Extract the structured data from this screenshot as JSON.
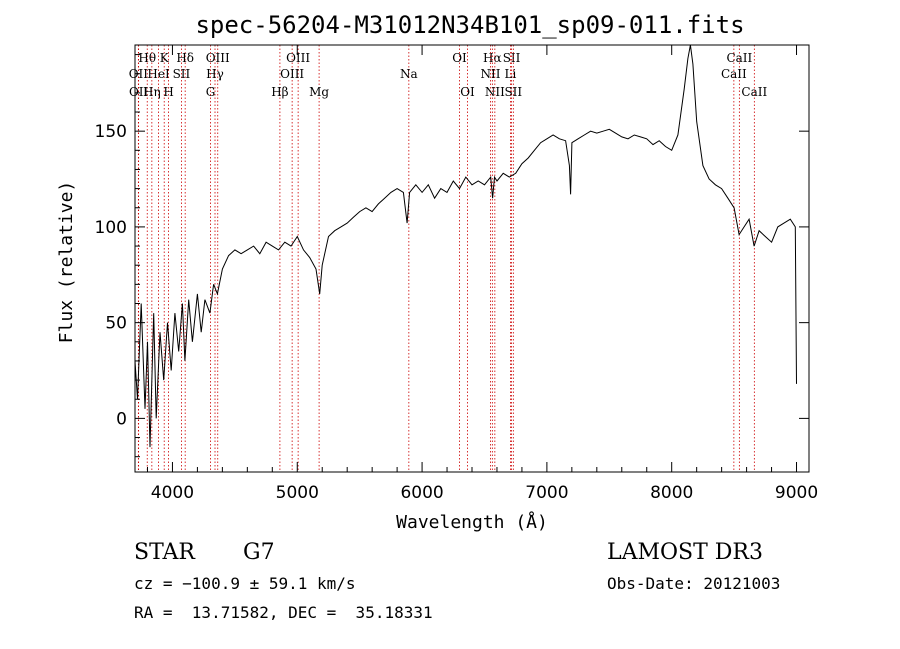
{
  "chart_data": {
    "type": "line",
    "title": "spec-56204-M31012N34B101_sp09-011.fits",
    "xlabel": "Wavelength (Å)",
    "ylabel": "Flux (relative)",
    "xlim": [
      3700,
      9100
    ],
    "ylim": [
      -28,
      195
    ],
    "xticks": [
      4000,
      5000,
      6000,
      7000,
      8000,
      9000
    ],
    "yticks": [
      0,
      50,
      100,
      150
    ],
    "series": [
      {
        "name": "spectrum",
        "points": [
          [
            3700,
            30
          ],
          [
            3720,
            10
          ],
          [
            3750,
            60
          ],
          [
            3780,
            5
          ],
          [
            3800,
            40
          ],
          [
            3820,
            -15
          ],
          [
            3850,
            55
          ],
          [
            3870,
            0
          ],
          [
            3900,
            45
          ],
          [
            3930,
            20
          ],
          [
            3960,
            50
          ],
          [
            3990,
            25
          ],
          [
            4020,
            55
          ],
          [
            4050,
            35
          ],
          [
            4080,
            60
          ],
          [
            4100,
            30
          ],
          [
            4130,
            62
          ],
          [
            4160,
            40
          ],
          [
            4200,
            65
          ],
          [
            4230,
            45
          ],
          [
            4260,
            62
          ],
          [
            4300,
            55
          ],
          [
            4330,
            70
          ],
          [
            4360,
            65
          ],
          [
            4400,
            78
          ],
          [
            4450,
            85
          ],
          [
            4500,
            88
          ],
          [
            4550,
            86
          ],
          [
            4600,
            88
          ],
          [
            4650,
            90
          ],
          [
            4700,
            86
          ],
          [
            4750,
            92
          ],
          [
            4800,
            90
          ],
          [
            4850,
            88
          ],
          [
            4900,
            92
          ],
          [
            4950,
            90
          ],
          [
            5000,
            95
          ],
          [
            5050,
            88
          ],
          [
            5100,
            84
          ],
          [
            5150,
            78
          ],
          [
            5180,
            65
          ],
          [
            5200,
            80
          ],
          [
            5250,
            95
          ],
          [
            5300,
            98
          ],
          [
            5350,
            100
          ],
          [
            5400,
            102
          ],
          [
            5450,
            105
          ],
          [
            5500,
            108
          ],
          [
            5550,
            110
          ],
          [
            5600,
            108
          ],
          [
            5650,
            112
          ],
          [
            5700,
            115
          ],
          [
            5750,
            118
          ],
          [
            5800,
            120
          ],
          [
            5850,
            118
          ],
          [
            5880,
            102
          ],
          [
            5900,
            118
          ],
          [
            5950,
            122
          ],
          [
            6000,
            118
          ],
          [
            6050,
            122
          ],
          [
            6100,
            115
          ],
          [
            6150,
            120
          ],
          [
            6200,
            118
          ],
          [
            6250,
            124
          ],
          [
            6300,
            120
          ],
          [
            6350,
            126
          ],
          [
            6400,
            122
          ],
          [
            6450,
            124
          ],
          [
            6500,
            122
          ],
          [
            6550,
            126
          ],
          [
            6565,
            115
          ],
          [
            6580,
            126
          ],
          [
            6600,
            124
          ],
          [
            6650,
            128
          ],
          [
            6700,
            126
          ],
          [
            6750,
            128
          ],
          [
            6800,
            133
          ],
          [
            6850,
            136
          ],
          [
            6900,
            140
          ],
          [
            6950,
            144
          ],
          [
            7000,
            146
          ],
          [
            7050,
            148
          ],
          [
            7100,
            146
          ],
          [
            7150,
            145
          ],
          [
            7180,
            132
          ],
          [
            7190,
            117
          ],
          [
            7200,
            144
          ],
          [
            7250,
            146
          ],
          [
            7300,
            148
          ],
          [
            7350,
            150
          ],
          [
            7400,
            149
          ],
          [
            7450,
            150
          ],
          [
            7500,
            151
          ],
          [
            7550,
            149
          ],
          [
            7600,
            147
          ],
          [
            7650,
            146
          ],
          [
            7700,
            148
          ],
          [
            7750,
            147
          ],
          [
            7800,
            146
          ],
          [
            7850,
            143
          ],
          [
            7900,
            145
          ],
          [
            7950,
            142
          ],
          [
            8000,
            140
          ],
          [
            8050,
            148
          ],
          [
            8100,
            172
          ],
          [
            8130,
            188
          ],
          [
            8150,
            196
          ],
          [
            8170,
            185
          ],
          [
            8200,
            155
          ],
          [
            8250,
            132
          ],
          [
            8300,
            125
          ],
          [
            8350,
            122
          ],
          [
            8400,
            120
          ],
          [
            8450,
            115
          ],
          [
            8500,
            110
          ],
          [
            8540,
            96
          ],
          [
            8580,
            100
          ],
          [
            8620,
            104
          ],
          [
            8660,
            90
          ],
          [
            8700,
            98
          ],
          [
            8750,
            95
          ],
          [
            8800,
            92
          ],
          [
            8850,
            100
          ],
          [
            8900,
            102
          ],
          [
            8950,
            104
          ],
          [
            8990,
            100
          ],
          [
            9000,
            18
          ]
        ]
      }
    ],
    "lines": [
      {
        "name": "Hθ",
        "wave": 3798,
        "row": 1
      },
      {
        "name": "OII",
        "wave": 3727,
        "row": 2
      },
      {
        "name": "OII",
        "wave": 3729,
        "row": 3
      },
      {
        "name": "K",
        "wave": 3934,
        "row": 1
      },
      {
        "name": "HeI",
        "wave": 3889,
        "row": 2
      },
      {
        "name": "Hη",
        "wave": 3835,
        "row": 3
      },
      {
        "name": "H",
        "wave": 3969,
        "row": 3
      },
      {
        "name": "Hδ",
        "wave": 4102,
        "row": 1
      },
      {
        "name": "SII",
        "wave": 4072,
        "row": 2
      },
      {
        "name": "OIII",
        "wave": 4363,
        "row": 1
      },
      {
        "name": "Hγ",
        "wave": 4341,
        "row": 2
      },
      {
        "name": "G",
        "wave": 4305,
        "row": 3
      },
      {
        "name": "Hβ",
        "wave": 4861,
        "row": 3
      },
      {
        "name": "OIII",
        "wave": 5007,
        "row": 1
      },
      {
        "name": "OIII",
        "wave": 4959,
        "row": 2
      },
      {
        "name": "Mg",
        "wave": 5175,
        "row": 3
      },
      {
        "name": "Na",
        "wave": 5894,
        "row": 2
      },
      {
        "name": "OI",
        "wave": 6300,
        "row": 1
      },
      {
        "name": "OI",
        "wave": 6364,
        "row": 3
      },
      {
        "name": "Hα",
        "wave": 6563,
        "row": 1
      },
      {
        "name": "NII",
        "wave": 6548,
        "row": 2
      },
      {
        "name": "NII",
        "wave": 6583,
        "row": 3
      },
      {
        "name": "SII",
        "wave": 6717,
        "row": 1
      },
      {
        "name": "Li",
        "wave": 6708,
        "row": 2
      },
      {
        "name": "SII",
        "wave": 6731,
        "row": 3
      },
      {
        "name": "CaII",
        "wave": 8542,
        "row": 1
      },
      {
        "name": "CaII",
        "wave": 8498,
        "row": 2
      },
      {
        "name": "CaII",
        "wave": 8662,
        "row": 3
      }
    ]
  },
  "info": {
    "class_label": "STAR",
    "subclass": "G7",
    "survey": "LAMOST DR3",
    "cz": "cz = −100.9 ± 59.1 km/s",
    "obs_date": "Obs-Date: 20121003",
    "coords": "RA =  13.71582, DEC =  35.18331"
  },
  "colors": {
    "axis": "#000000",
    "spectrum": "#000000",
    "line_marker": "#cc0000"
  }
}
